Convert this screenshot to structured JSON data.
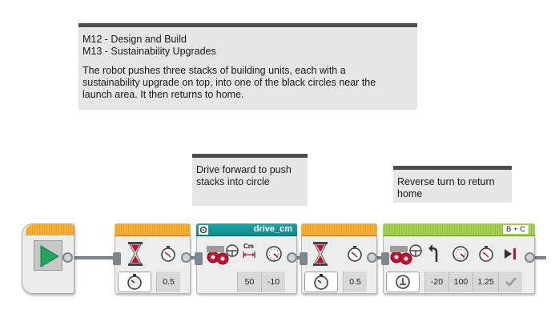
{
  "comments": {
    "mission": {
      "line1": "M12 - Design and Build",
      "line2": "M13 - Sustainability Upgrades",
      "body1": "The robot pushes three stacks of building units, each with a",
      "body2": "sustainability upgrade on top, into one of the black circles near the",
      "body3": "launch area. It then returns to home."
    },
    "drive_note": {
      "line1": "Drive forward to push",
      "line2": "stacks into circle"
    },
    "reverse_note": {
      "line1": "Reverse turn to return",
      "line2": "home"
    }
  },
  "program": {
    "start_block": {
      "icon": "play-icon"
    },
    "wait1": {
      "icon": "hourglass-icon",
      "mode_icon": "stopwatch-icon",
      "param_icon": "timer-icon",
      "seconds": "0.5"
    },
    "drive_block": {
      "name": "drive_cm",
      "icon": "move-steering-icon",
      "param_icons": [
        "steering-icon",
        "distance-cm-icon",
        "speed-gauge-icon"
      ],
      "distance_unit": "Cm",
      "distance": "50",
      "speed": "-10"
    },
    "wait2": {
      "icon": "hourglass-icon",
      "mode_icon": "stopwatch-icon",
      "param_icon": "timer-icon",
      "seconds": "0.5"
    },
    "steering_block": {
      "ports": "B + C",
      "icon": "move-steering-icon",
      "mode_icon": "rotations-icon",
      "param_icons": [
        "steering-icon",
        "turn-arrow-icon",
        "power-gauge-icon",
        "timer-icon",
        "brake-icon"
      ],
      "steering": "-20",
      "power": "100",
      "rotations": "1.25",
      "brake": "check-icon"
    }
  },
  "colors": {
    "comment_bg": "#e6e6e6",
    "comment_border": "#4d4d4d",
    "flow_orange": "#f09a1e",
    "motor_green": "#8dc23a",
    "myblock_teal": "#0e8a8c",
    "wire": "#7d8790",
    "play_green": "#1fa85a"
  }
}
